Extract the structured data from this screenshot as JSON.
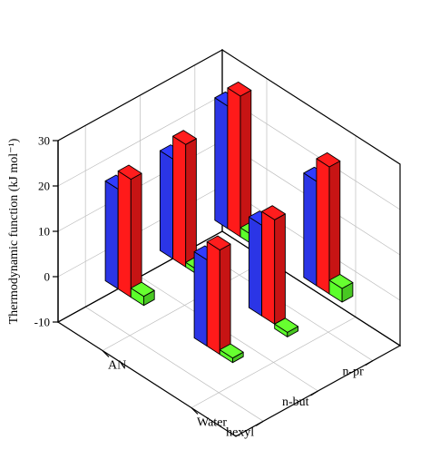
{
  "chart_data": {
    "type": "bar3d",
    "ylabel": "Thermodynamic function (kJ mol⁻¹)",
    "ylim": [
      -10,
      30
    ],
    "yticks": [
      "-10",
      "0",
      "10",
      "20",
      "30"
    ],
    "categories": [
      "n-pr",
      "n-but",
      "hexyl"
    ],
    "solvents": [
      "AN",
      "Water"
    ],
    "grid": true,
    "series_colors": [
      "#2b35e6",
      "#ff1a1a",
      "#5cff2b"
    ],
    "groups": [
      {
        "category": "n-pr",
        "solvent": "Water",
        "values": [
          27,
          31,
          2
        ]
      },
      {
        "category": "n-pr",
        "solvent": "AN",
        "values": [
          23,
          28,
          3
        ]
      },
      {
        "category": "n-but",
        "solvent": "Water",
        "values": [
          22,
          27,
          1
        ]
      },
      {
        "category": "n-but",
        "solvent": "AN",
        "values": [
          20,
          23,
          -1
        ]
      },
      {
        "category": "hexyl",
        "solvent": "Water",
        "values": [
          22,
          26,
          2
        ]
      },
      {
        "category": "hexyl",
        "solvent": "AN",
        "values": [
          19,
          23,
          1
        ]
      }
    ]
  }
}
